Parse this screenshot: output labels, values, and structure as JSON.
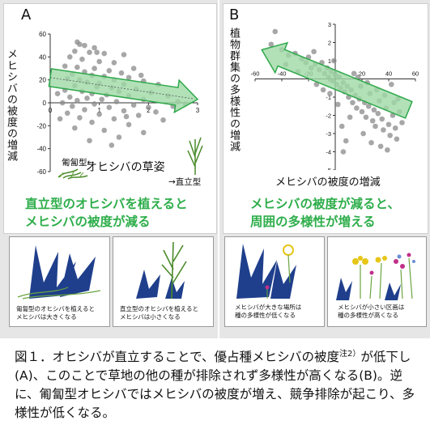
{
  "panel_a": {
    "letter": "A",
    "ylabel": "メヒシバの被度の増減",
    "xlabel": "オヒシバの草姿",
    "x_left_label": "匍匐型←",
    "x_right_label": "→直立型",
    "statement_line1": "直立型のオヒシバを植えると",
    "statement_line2": "メヒシバの被度が減る",
    "illus_left_caption_1": "匍匐型のオヒシバを植えると",
    "illus_left_caption_2": "メヒシバは大きくなる",
    "illus_right_caption_1": "直立型のオヒシバを植えると",
    "illus_right_caption_2": "メヒシバは小さくなる"
  },
  "panel_b": {
    "letter": "B",
    "ylabel": "植物群集の多様性の増減",
    "xlabel": "メヒシバの被度の増減",
    "statement_line1": "メヒシバの被度が減ると、",
    "statement_line2": "周囲の多様性が増える",
    "illus_left_caption_1": "メヒシバが大きな場所は",
    "illus_left_caption_2": "種の多様性が低くなる",
    "illus_right_caption_1": "メヒシバが小さい区画は",
    "illus_right_caption_2": "種の多様性が高くなる"
  },
  "caption": {
    "part1": "図１．オヒシバが直立することで、優占種メヒシバの被度",
    "sup": "注2）",
    "part2": "が低下し(A)、このことで草地の他の種が排除されず多様性が高くなる(B)。逆に、匍匐型オヒシバではメヒシバの被度が増え、競争排除が起こり、多様性が低くなる。"
  },
  "colors": {
    "arrow_fill": "#9fd9a6",
    "arrow_stroke": "#2ea84a",
    "point": "#8a8a8a",
    "accent_text": "#2eae4b"
  },
  "chart_data": [
    {
      "type": "scatter",
      "panel": "A",
      "title": "",
      "xlabel": "オヒシバの草姿",
      "ylabel": "メヒシバの被度の増減",
      "xlim": [
        0,
        3
      ],
      "ylim": [
        -60,
        60
      ],
      "x_ticks": [
        0,
        1,
        2,
        3
      ],
      "y_ticks": [
        -60,
        -40,
        -20,
        0,
        20,
        40,
        60
      ],
      "trend": {
        "x": [
          0,
          3
        ],
        "y": [
          22,
          3
        ]
      },
      "points": [
        [
          0.55,
          53
        ],
        [
          0.6,
          51
        ],
        [
          0.7,
          50
        ],
        [
          0.9,
          48
        ],
        [
          0.5,
          45
        ],
        [
          0.8,
          44
        ],
        [
          1.1,
          43
        ],
        [
          1.5,
          42
        ],
        [
          0.4,
          40
        ],
        [
          0.65,
          38
        ],
        [
          1.0,
          36
        ],
        [
          1.3,
          35
        ],
        [
          0.3,
          32
        ],
        [
          0.55,
          31
        ],
        [
          0.9,
          30
        ],
        [
          1.7,
          30
        ],
        [
          1.2,
          28
        ],
        [
          0.7,
          27
        ],
        [
          1.45,
          26
        ],
        [
          0.45,
          25
        ],
        [
          0.85,
          24
        ],
        [
          1.1,
          23
        ],
        [
          1.6,
          22
        ],
        [
          0.35,
          21
        ],
        [
          0.6,
          20
        ],
        [
          1.3,
          20
        ],
        [
          1.9,
          19
        ],
        [
          0.75,
          18
        ],
        [
          1.0,
          17
        ],
        [
          1.5,
          16
        ],
        [
          2.2,
          16
        ],
        [
          0.5,
          15
        ],
        [
          0.95,
          14
        ],
        [
          1.25,
          13
        ],
        [
          1.75,
          12
        ],
        [
          0.3,
          11
        ],
        [
          0.65,
          10
        ],
        [
          1.4,
          10
        ],
        [
          2.05,
          9
        ],
        [
          0.85,
          8
        ],
        [
          1.15,
          7
        ],
        [
          1.6,
          6
        ],
        [
          2.4,
          6
        ],
        [
          0.4,
          5
        ],
        [
          0.75,
          4
        ],
        [
          1.05,
          3
        ],
        [
          1.9,
          3
        ],
        [
          0.55,
          2
        ],
        [
          1.35,
          1
        ],
        [
          2.6,
          1
        ],
        [
          0.25,
          0
        ],
        [
          0.9,
          -1
        ],
        [
          1.7,
          -2
        ],
        [
          0.45,
          -3
        ],
        [
          1.2,
          -4
        ],
        [
          2.0,
          -4
        ],
        [
          0.7,
          -6
        ],
        [
          1.5,
          -7
        ],
        [
          0.35,
          -9
        ],
        [
          1.0,
          -10
        ],
        [
          1.8,
          -11
        ],
        [
          0.6,
          -13
        ],
        [
          1.3,
          -14
        ],
        [
          2.3,
          -15
        ],
        [
          0.85,
          -17
        ],
        [
          1.6,
          -19
        ],
        [
          0.5,
          -22
        ],
        [
          1.1,
          -24
        ],
        [
          1.9,
          -26
        ],
        [
          1.4,
          -30
        ],
        [
          0.8,
          -33
        ],
        [
          2.15,
          -8
        ],
        [
          2.5,
          -3
        ],
        [
          2.75,
          -1
        ],
        [
          1.25,
          -37
        ],
        [
          0.15,
          8
        ],
        [
          0.2,
          -14
        ],
        [
          1.85,
          24
        ],
        [
          0.95,
          44
        ],
        [
          1.55,
          -12
        ]
      ]
    },
    {
      "type": "scatter",
      "panel": "B",
      "title": "",
      "xlabel": "メヒシバの被度の増減",
      "ylabel": "植物群集の多様性の増減",
      "xlim": [
        -60,
        60
      ],
      "ylim": [
        -5,
        3
      ],
      "x_ticks": [
        -60,
        -40,
        -20,
        0,
        20,
        40,
        60
      ],
      "y_ticks": [
        -5,
        -4,
        -3,
        -2,
        -1,
        0,
        1,
        2,
        3
      ],
      "trend": {
        "x": [
          -55,
          55
        ],
        "y": [
          1.6,
          -1.7
        ]
      },
      "points": [
        [
          -48,
          1.9
        ],
        [
          -40,
          1.6
        ],
        [
          -35,
          1.3
        ],
        [
          -30,
          1.4
        ],
        [
          -25,
          1.1
        ],
        [
          -22,
          0.9
        ],
        [
          -20,
          1.2
        ],
        [
          -18,
          0.6
        ],
        [
          -15,
          0.8
        ],
        [
          -12,
          0.5
        ],
        [
          -10,
          0.9
        ],
        [
          -8,
          0.3
        ],
        [
          -6,
          0.6
        ],
        [
          -5,
          0.1
        ],
        [
          -3,
          0.4
        ],
        [
          -2,
          -0.1
        ],
        [
          0,
          0.2
        ],
        [
          1,
          -0.3
        ],
        [
          3,
          0.1
        ],
        [
          4,
          -0.5
        ],
        [
          6,
          -0.2
        ],
        [
          7,
          -0.7
        ],
        [
          9,
          -0.4
        ],
        [
          10,
          -1.0
        ],
        [
          12,
          -0.6
        ],
        [
          13,
          -1.3
        ],
        [
          15,
          -0.9
        ],
        [
          16,
          -1.6
        ],
        [
          18,
          -1.1
        ],
        [
          19,
          -0.4
        ],
        [
          20,
          -1.8
        ],
        [
          22,
          -1.3
        ],
        [
          23,
          -2.1
        ],
        [
          25,
          -1.5
        ],
        [
          26,
          -0.8
        ],
        [
          28,
          -2.3
        ],
        [
          29,
          -1.7
        ],
        [
          30,
          -2.6
        ],
        [
          32,
          -1.9
        ],
        [
          33,
          -1.2
        ],
        [
          35,
          -2.2
        ],
        [
          36,
          -2.8
        ],
        [
          38,
          -1.6
        ],
        [
          40,
          -2.5
        ],
        [
          41,
          -3.1
        ],
        [
          43,
          -2.0
        ],
        [
          45,
          -2.7
        ],
        [
          46,
          -3.3
        ],
        [
          48,
          -1.8
        ],
        [
          50,
          -2.4
        ],
        [
          -45,
          2.6
        ],
        [
          -28,
          0.4
        ],
        [
          -14,
          -0.3
        ],
        [
          -4,
          -0.8
        ],
        [
          2,
          -1.4
        ],
        [
          5,
          -2.6
        ],
        [
          8,
          -3.4
        ],
        [
          11,
          -2.1
        ],
        [
          14,
          0.3
        ],
        [
          17,
          0.1
        ],
        [
          24,
          -0.2
        ],
        [
          27,
          -3.5
        ],
        [
          31,
          -0.6
        ],
        [
          34,
          -3.7
        ],
        [
          37,
          -0.9
        ],
        [
          42,
          -0.3
        ],
        [
          47,
          -1.1
        ],
        [
          -37,
          0.8
        ],
        [
          -9,
          -0.6
        ],
        [
          -1,
          1.0
        ],
        [
          21,
          -3.0
        ],
        [
          39,
          -3.9
        ],
        [
          44,
          -1.3
        ],
        [
          6,
          -4.0
        ],
        [
          -16,
          1.5
        ]
      ]
    }
  ]
}
